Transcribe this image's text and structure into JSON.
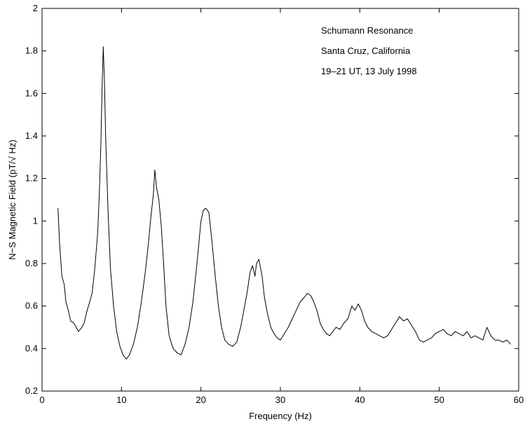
{
  "chart_data": {
    "type": "line",
    "title": "",
    "xlabel": "Frequency (Hz)",
    "ylabel": "N−S Magnetic Field (pT/√ Hz)",
    "xlim": [
      0,
      60
    ],
    "ylim": [
      0.2,
      2
    ],
    "xticks": [
      0,
      10,
      20,
      30,
      40,
      50,
      60
    ],
    "yticks": [
      0.2,
      0.4,
      0.6,
      0.8,
      1,
      1.2,
      1.4,
      1.6,
      1.8,
      2
    ],
    "xtick_labels": [
      "0",
      "10",
      "20",
      "30",
      "40",
      "50",
      "60"
    ],
    "ytick_labels": [
      "0.2",
      "0.4",
      "0.6",
      "0.8",
      "1",
      "1.2",
      "1.4",
      "1.6",
      "1.8",
      "2"
    ],
    "grid": false,
    "annotations": [
      "Schumann Resonance",
      "Santa Cruz, California",
      "19–21 UT, 13 July 1998"
    ],
    "line_color": "#000000",
    "series": [
      {
        "x": [
          2.0,
          2.2,
          2.5,
          2.8,
          3.0,
          3.3,
          3.6,
          4.0,
          4.3,
          4.6,
          5.0,
          5.3,
          5.6,
          6.0,
          6.3,
          6.6,
          7.0,
          7.2,
          7.4,
          7.55,
          7.7,
          7.85,
          8.0,
          8.3,
          8.6,
          9.0,
          9.4,
          9.8,
          10.2,
          10.6,
          11.0,
          11.5,
          12.0,
          12.5,
          13.0,
          13.4,
          13.7,
          14.0,
          14.2,
          14.4,
          14.7,
          15.0,
          15.3,
          15.6,
          16.0,
          16.5,
          17.0,
          17.5,
          18.0,
          18.5,
          19.0,
          19.5,
          20.0,
          20.3,
          20.6,
          21.0,
          21.4,
          21.8,
          22.2,
          22.6,
          23.0,
          23.5,
          24.0,
          24.5,
          25.0,
          25.4,
          25.8,
          26.2,
          26.5,
          26.8,
          27.0,
          27.3,
          27.7,
          28.0,
          28.4,
          28.8,
          29.2,
          29.6,
          30.0,
          30.5,
          31.0,
          31.5,
          32.0,
          32.5,
          33.0,
          33.4,
          33.8,
          34.2,
          34.6,
          35.0,
          35.4,
          35.8,
          36.2,
          36.6,
          37.0,
          37.5,
          38.0,
          38.5,
          39.0,
          39.4,
          39.8,
          40.2,
          40.6,
          41.0,
          41.5,
          42.0,
          42.5,
          43.0,
          43.5,
          44.0,
          44.5,
          45.0,
          45.5,
          46.0,
          46.5,
          47.0,
          47.5,
          48.0,
          48.5,
          49.0,
          49.5,
          50.0,
          50.5,
          51.0,
          51.5,
          52.0,
          52.5,
          53.0,
          53.5,
          54.0,
          54.5,
          55.0,
          55.5,
          56.0,
          56.5,
          57.0,
          57.5,
          58.0,
          58.5,
          59.0
        ],
        "values": [
          1.06,
          0.9,
          0.74,
          0.7,
          0.62,
          0.58,
          0.53,
          0.52,
          0.5,
          0.48,
          0.5,
          0.52,
          0.57,
          0.62,
          0.66,
          0.76,
          0.94,
          1.12,
          1.36,
          1.62,
          1.82,
          1.66,
          1.4,
          1.05,
          0.78,
          0.6,
          0.48,
          0.41,
          0.37,
          0.35,
          0.37,
          0.42,
          0.5,
          0.62,
          0.76,
          0.9,
          1.02,
          1.12,
          1.24,
          1.16,
          1.1,
          0.98,
          0.8,
          0.6,
          0.46,
          0.4,
          0.38,
          0.37,
          0.42,
          0.5,
          0.62,
          0.8,
          1.0,
          1.05,
          1.06,
          1.04,
          0.9,
          0.74,
          0.6,
          0.5,
          0.44,
          0.42,
          0.41,
          0.43,
          0.5,
          0.58,
          0.66,
          0.76,
          0.79,
          0.74,
          0.8,
          0.82,
          0.74,
          0.64,
          0.56,
          0.5,
          0.47,
          0.45,
          0.44,
          0.47,
          0.5,
          0.54,
          0.58,
          0.62,
          0.64,
          0.66,
          0.65,
          0.62,
          0.58,
          0.52,
          0.49,
          0.47,
          0.46,
          0.48,
          0.5,
          0.49,
          0.52,
          0.54,
          0.6,
          0.58,
          0.61,
          0.58,
          0.53,
          0.5,
          0.48,
          0.47,
          0.46,
          0.45,
          0.46,
          0.49,
          0.52,
          0.55,
          0.53,
          0.54,
          0.51,
          0.48,
          0.44,
          0.43,
          0.44,
          0.45,
          0.47,
          0.48,
          0.49,
          0.47,
          0.46,
          0.48,
          0.47,
          0.46,
          0.48,
          0.45,
          0.46,
          0.45,
          0.44,
          0.5,
          0.46,
          0.44,
          0.44,
          0.43,
          0.44,
          0.42
        ]
      }
    ]
  }
}
